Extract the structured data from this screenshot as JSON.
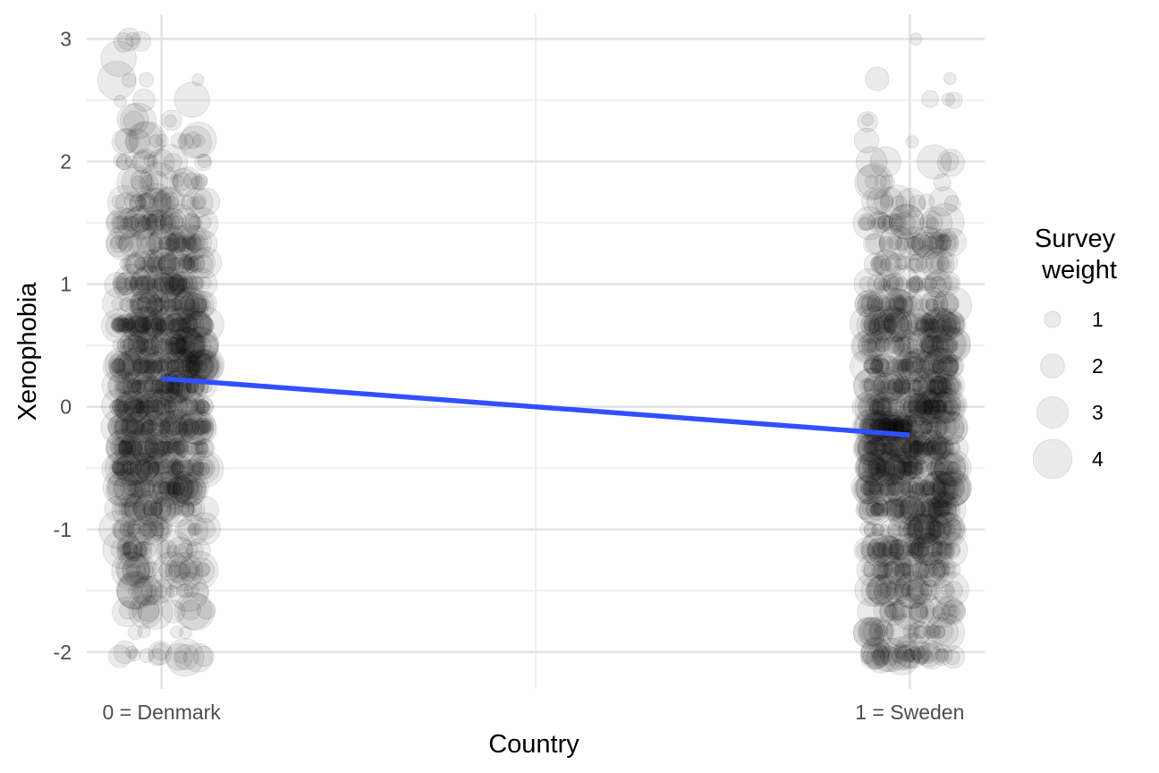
{
  "chart_data": {
    "type": "scatter",
    "title": "",
    "xlabel": "Country",
    "ylabel": "Xenophobia",
    "x_categories": [
      "0 = Denmark",
      "1 = Sweden"
    ],
    "x_values": [
      0,
      1
    ],
    "xlim": [
      -0.1,
      1.1
    ],
    "ylim": [
      -2.3,
      3.2
    ],
    "y_ticks": [
      -2,
      -1,
      0,
      1,
      2,
      3
    ],
    "y_tick_labels": [
      "-2",
      "-1",
      "0",
      "1",
      "2",
      "3"
    ],
    "grid": true,
    "point_color": "#000000",
    "point_opacity": 0.08,
    "point_jitter": 0.06,
    "point_count_per_country": 1000,
    "point_value_range": [
      -2.05,
      3.0
    ],
    "fit_line": {
      "color": "#3050ff",
      "points": [
        [
          0,
          0.23
        ],
        [
          1,
          -0.23
        ]
      ]
    },
    "legend": {
      "title_lines": [
        "Survey",
        "weight"
      ],
      "position": "right",
      "entries": [
        {
          "label": "1",
          "size": 1
        },
        {
          "label": "2",
          "size": 2
        },
        {
          "label": "3",
          "size": 3
        },
        {
          "label": "4",
          "size": 4
        }
      ]
    }
  }
}
